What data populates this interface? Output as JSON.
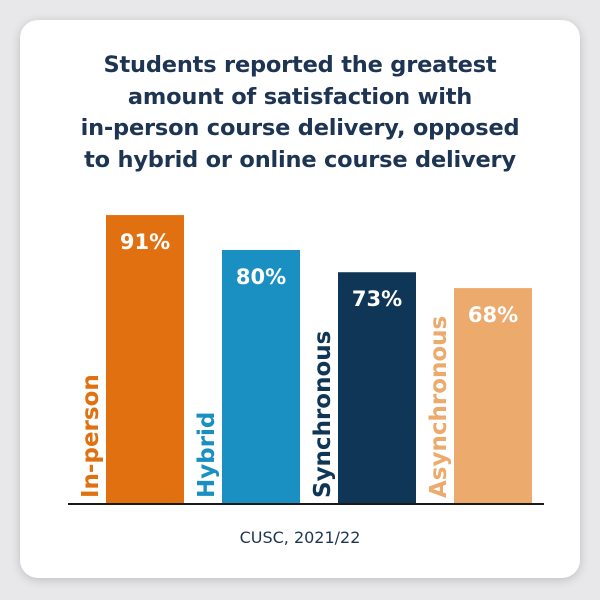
{
  "chart_data": {
    "type": "bar",
    "title_lines": [
      "Students reported the greatest",
      "amount of satisfaction with",
      "in-person course delivery, opposed",
      "to hybrid or online course delivery"
    ],
    "categories": [
      "In-person",
      "Hybrid",
      "Synchronous",
      "Asynchronous"
    ],
    "values": [
      91,
      80,
      73,
      68
    ],
    "value_labels": [
      "91%",
      "80%",
      "73%",
      "68%"
    ],
    "colors": [
      "#e07010",
      "#1a8fc1",
      "#0f3657",
      "#ecaa6c"
    ],
    "ylim": [
      0,
      100
    ],
    "grid": false,
    "source": "CUSC, 2021/22"
  }
}
